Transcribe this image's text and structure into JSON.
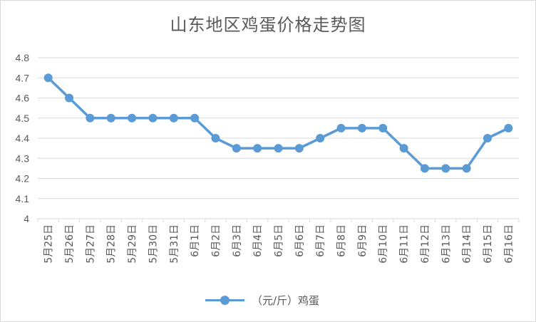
{
  "title": "山东地区鸡蛋价格走势图",
  "legend": {
    "label": "（元/斤）鸡蛋"
  },
  "colors": {
    "series": "#5b9bd5",
    "grid": "#d9d9d9",
    "text": "#595959"
  },
  "chart_data": {
    "type": "line",
    "title": "山东地区鸡蛋价格走势图",
    "xlabel": "",
    "ylabel": "",
    "ylim": [
      4,
      4.8
    ],
    "yticks": [
      "4",
      "4.1",
      "4.2",
      "4.3",
      "4.4",
      "4.5",
      "4.6",
      "4.7",
      "4.8"
    ],
    "grid": true,
    "legend_position": "bottom",
    "categories": [
      "5月25日",
      "5月26日",
      "5月27日",
      "5月28日",
      "5月29日",
      "5月30日",
      "5月31日",
      "6月1日",
      "6月2日",
      "6月3日",
      "6月4日",
      "6月5日",
      "6月6日",
      "6月7日",
      "6月8日",
      "6月9日",
      "6月10日",
      "6月11日",
      "6月12日",
      "6月13日",
      "6月14日",
      "6月15日",
      "6月16日"
    ],
    "series": [
      {
        "name": "（元/斤）鸡蛋",
        "values": [
          4.7,
          4.6,
          4.5,
          4.5,
          4.5,
          4.5,
          4.5,
          4.5,
          4.4,
          4.35,
          4.35,
          4.35,
          4.35,
          4.4,
          4.45,
          4.45,
          4.45,
          4.35,
          4.25,
          4.25,
          4.25,
          4.4,
          4.45
        ]
      }
    ]
  }
}
